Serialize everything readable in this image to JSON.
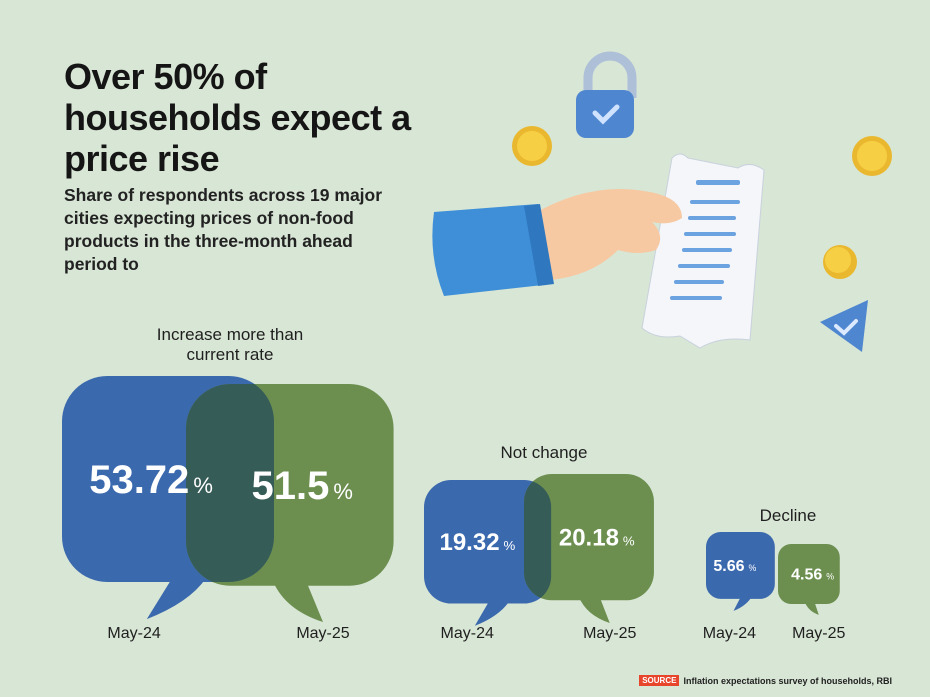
{
  "headline": "Over 50% of households expect a price rise",
  "subtitle": "Share of respondents across 19 major cities expecting prices of non-food products in the three-month ahead period to",
  "chart_data": {
    "type": "bubble-comparison",
    "categories": [
      "Increase more than current rate",
      "Not change",
      "Decline"
    ],
    "series": [
      {
        "name": "May-24",
        "values": [
          53.72,
          19.32,
          5.66
        ],
        "color": "#3b69ae"
      },
      {
        "name": "May-25",
        "values": [
          51.5,
          20.18,
          4.56
        ],
        "color": "#6c8f50"
      }
    ],
    "value_unit": "%",
    "overlap_color": "#365c58"
  },
  "source": {
    "label": "SOURCE",
    "text": "Inflation expectations survey of households, RBI"
  },
  "colors": {
    "background": "#d8e6d5",
    "accent": "#e8452d"
  }
}
